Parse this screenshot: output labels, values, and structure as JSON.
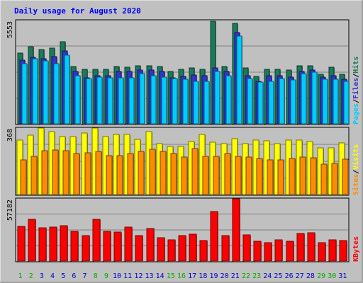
{
  "chart_data": {
    "type": "bar",
    "title": "Daily usage for August 2020",
    "days": [
      "1",
      "2",
      "3",
      "4",
      "5",
      "6",
      "7",
      "8",
      "9",
      "10",
      "11",
      "12",
      "13",
      "14",
      "15",
      "16",
      "17",
      "18",
      "19",
      "20",
      "21",
      "22",
      "23",
      "24",
      "25",
      "26",
      "27",
      "28",
      "29",
      "30",
      "31"
    ],
    "weekend_days": [
      "1",
      "2",
      "8",
      "9",
      "15",
      "16",
      "22",
      "23",
      "29",
      "30"
    ],
    "panels": [
      {
        "id": "hits-files-pages",
        "max_label": "5553",
        "ymax": 5553,
        "labels": [
          "Pages",
          "Files",
          "Hits"
        ],
        "series": [
          {
            "name": "Hits",
            "color": "#1b7a5a",
            "values": [
              3810,
              4150,
              3990,
              4060,
              4400,
              3080,
              2910,
              2920,
              2930,
              3080,
              3060,
              3110,
              3120,
              3070,
              2830,
              2930,
              3010,
              2920,
              5500,
              3080,
              5400,
              3000,
              2550,
              2910,
              2930,
              2900,
              3100,
              3100,
              2670,
              3050,
              2670
            ]
          },
          {
            "name": "Files",
            "color": "#3333cc",
            "values": [
              3420,
              3580,
              3500,
              3600,
              3900,
              2800,
              2480,
              2600,
              2600,
              2800,
              2800,
              2900,
              2900,
              2800,
              2480,
              2560,
              2640,
              2600,
              3000,
              2800,
              4900,
              2600,
              2300,
              2600,
              2600,
              2500,
              2800,
              2900,
              2500,
              2600,
              2400
            ]
          },
          {
            "name": "Pages",
            "color": "#00ccff",
            "values": [
              3250,
              3500,
              3380,
              3250,
              3700,
              2600,
              2420,
              2500,
              2460,
              2460,
              2460,
              2700,
              2600,
              2500,
              2420,
              2410,
              2300,
              2300,
              2800,
              2600,
              4700,
              2420,
              2260,
              2280,
              2420,
              2360,
              2700,
              2780,
              2380,
              2400,
              2290
            ]
          }
        ]
      },
      {
        "id": "visits-sites",
        "max_label": "368",
        "ymax": 368,
        "labels": [
          "Sites",
          "Visits"
        ],
        "series": [
          {
            "name": "Visits",
            "color": "#ffff00",
            "values": [
              300,
              330,
              368,
              348,
              322,
              320,
              340,
              368,
              320,
              332,
              332,
              306,
              348,
              282,
              268,
              268,
              292,
              332,
              290,
              282,
              308,
              280,
              300,
              298,
              280,
              302,
              300,
              294,
              258,
              258,
              284
            ]
          },
          {
            "name": "Sites",
            "color": "#ff8c00",
            "values": [
              192,
              210,
              242,
              248,
              242,
              228,
              232,
              240,
              214,
              216,
              226,
              240,
              250,
              240,
              226,
              206,
              254,
              212,
              210,
              226,
              212,
              206,
              198,
              190,
              190,
              200,
              206,
              202,
              170,
              174,
              194
            ]
          }
        ]
      },
      {
        "id": "kbytes",
        "max_label": "57182",
        "ymax": 57182,
        "labels": [
          "KBytes"
        ],
        "series": [
          {
            "name": "KBytes",
            "color": "#ff0000",
            "values": [
              32000,
              38500,
              30500,
              31400,
              32800,
              27200,
              23500,
              38300,
              27300,
              26800,
              31100,
              23700,
              30000,
              21400,
              19500,
              23500,
              24800,
              18900,
              45700,
              23700,
              57000,
              24300,
              17900,
              16600,
              19700,
              17900,
              25300,
              26300,
              16800,
              19300,
              18600
            ]
          }
        ]
      }
    ]
  },
  "colors": {
    "background": "#c0c0c0",
    "title": "#0000ff",
    "weekday": "#0000cc",
    "weekend": "#00aa00"
  }
}
